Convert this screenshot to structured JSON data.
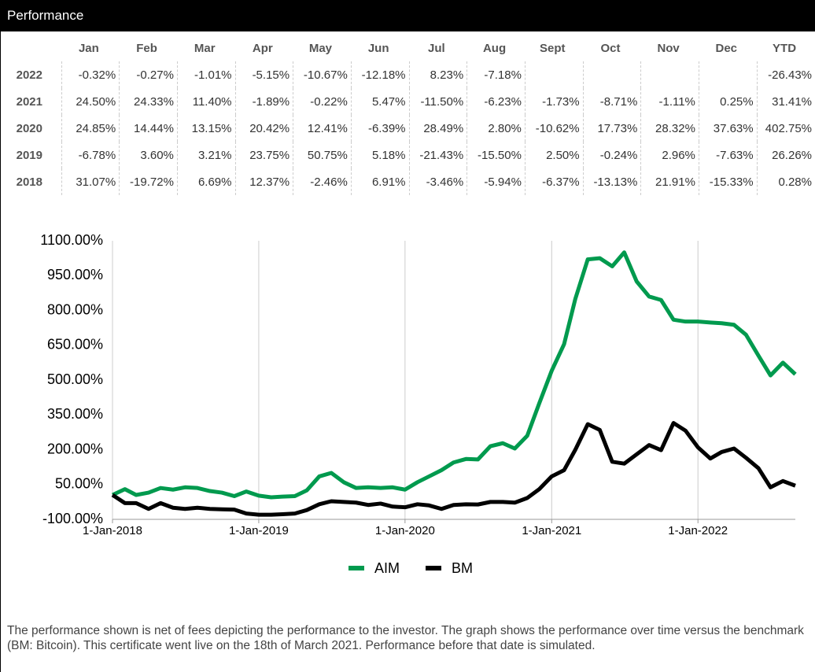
{
  "header": {
    "title": "Performance"
  },
  "table": {
    "columns": [
      "Jan",
      "Feb",
      "Mar",
      "Apr",
      "May",
      "Jun",
      "Jul",
      "Aug",
      "Sept",
      "Oct",
      "Nov",
      "Dec",
      "YTD"
    ],
    "rows": [
      {
        "year": "2022",
        "values": [
          "-0.32%",
          "-0.27%",
          "-1.01%",
          "-5.15%",
          "-10.67%",
          "-12.18%",
          "8.23%",
          "-7.18%",
          null,
          null,
          null,
          null,
          "-26.43%"
        ]
      },
      {
        "year": "2021",
        "values": [
          "24.50%",
          "24.33%",
          "11.40%",
          "-1.89%",
          "-0.22%",
          "5.47%",
          "-11.50%",
          "-6.23%",
          "-1.73%",
          "-8.71%",
          "-1.11%",
          "0.25%",
          "31.41%"
        ]
      },
      {
        "year": "2020",
        "values": [
          "24.85%",
          "14.44%",
          "13.15%",
          "20.42%",
          "12.41%",
          "-6.39%",
          "28.49%",
          "2.80%",
          "-10.62%",
          "17.73%",
          "28.32%",
          "37.63%",
          "402.75%"
        ]
      },
      {
        "year": "2019",
        "values": [
          "-6.78%",
          "3.60%",
          "3.21%",
          "23.75%",
          "50.75%",
          "5.18%",
          "-21.43%",
          "-15.50%",
          "2.50%",
          "-0.24%",
          "2.96%",
          "-7.63%",
          "26.26%"
        ]
      },
      {
        "year": "2018",
        "values": [
          "31.07%",
          "-19.72%",
          "6.69%",
          "12.37%",
          "-2.46%",
          "6.91%",
          "-3.46%",
          "-5.94%",
          "-6.37%",
          "-13.13%",
          "21.91%",
          "-15.33%",
          "0.28%"
        ]
      }
    ]
  },
  "chart_data": {
    "type": "line",
    "x": [
      "2018-01-01",
      "2018-02-01",
      "2018-03-01",
      "2018-04-01",
      "2018-05-01",
      "2018-06-01",
      "2018-07-01",
      "2018-08-01",
      "2018-09-01",
      "2018-10-01",
      "2018-11-01",
      "2018-12-01",
      "2019-01-01",
      "2019-02-01",
      "2019-03-01",
      "2019-04-01",
      "2019-05-01",
      "2019-06-01",
      "2019-07-01",
      "2019-08-01",
      "2019-09-01",
      "2019-10-01",
      "2019-11-01",
      "2019-12-01",
      "2020-01-01",
      "2020-02-01",
      "2020-03-01",
      "2020-04-01",
      "2020-05-01",
      "2020-06-01",
      "2020-07-01",
      "2020-08-01",
      "2020-09-01",
      "2020-10-01",
      "2020-11-01",
      "2020-12-01",
      "2021-01-01",
      "2021-02-01",
      "2021-03-01",
      "2021-04-01",
      "2021-05-01",
      "2021-06-01",
      "2021-07-01",
      "2021-08-01",
      "2021-09-01",
      "2021-10-01",
      "2021-11-01",
      "2021-12-01",
      "2022-01-01",
      "2022-02-01",
      "2022-03-01",
      "2022-04-01",
      "2022-05-01",
      "2022-06-01",
      "2022-07-01",
      "2022-08-01",
      "2022-09-01"
    ],
    "series": [
      {
        "name": "AIM",
        "color": "#009a4e",
        "values": [
          5,
          30,
          5,
          15,
          35,
          28,
          38,
          35,
          22,
          15,
          0,
          20,
          2,
          -5,
          -2,
          0,
          25,
          85,
          100,
          60,
          35,
          38,
          35,
          38,
          28,
          60,
          85,
          112,
          145,
          160,
          158,
          215,
          228,
          205,
          260,
          400,
          540,
          655,
          850,
          1020,
          1025,
          990,
          1050,
          925,
          860,
          845,
          760,
          752,
          752,
          748,
          745,
          738,
          695,
          605,
          520,
          575,
          525
        ]
      },
      {
        "name": "BM",
        "color": "#000000",
        "values": [
          5,
          -30,
          -30,
          -55,
          -30,
          -50,
          -55,
          -50,
          -55,
          -57,
          -58,
          -75,
          -80,
          -80,
          -78,
          -75,
          -60,
          -35,
          -22,
          -25,
          -28,
          -38,
          -32,
          -45,
          -48,
          -35,
          -40,
          -55,
          -38,
          -35,
          -36,
          -25,
          -25,
          -28,
          -8,
          30,
          85,
          112,
          200,
          310,
          285,
          148,
          140,
          180,
          220,
          198,
          315,
          282,
          210,
          162,
          190,
          205,
          165,
          120,
          38,
          65,
          45
        ]
      }
    ],
    "xlim": [
      "2018-01-01",
      "2022-09-01"
    ],
    "xticks": [
      {
        "value": "2018-01-01",
        "label": "1-Jan-2018"
      },
      {
        "value": "2019-01-01",
        "label": "1-Jan-2019"
      },
      {
        "value": "2020-01-01",
        "label": "1-Jan-2020"
      },
      {
        "value": "2021-01-01",
        "label": "1-Jan-2021"
      },
      {
        "value": "2022-01-01",
        "label": "1-Jan-2022"
      }
    ],
    "ylim": [
      -100,
      1100
    ],
    "yticks": [
      {
        "value": -100,
        "label": "-100.00%"
      },
      {
        "value": 50,
        "label": "50.00%"
      },
      {
        "value": 200,
        "label": "200.00%"
      },
      {
        "value": 350,
        "label": "350.00%"
      },
      {
        "value": 500,
        "label": "500.00%"
      },
      {
        "value": 650,
        "label": "650.00%"
      },
      {
        "value": 800,
        "label": "800.00%"
      },
      {
        "value": 950,
        "label": "950.00%"
      },
      {
        "value": 1100,
        "label": "1100.00%"
      }
    ],
    "grid": "x"
  },
  "footnote": "The performance shown is net of fees depicting the performance to the investor. The graph shows the performance over time versus the benchmark (BM: Bitcoin). This certificate went live on the 18th of March 2021. Performance before that date is simulated."
}
